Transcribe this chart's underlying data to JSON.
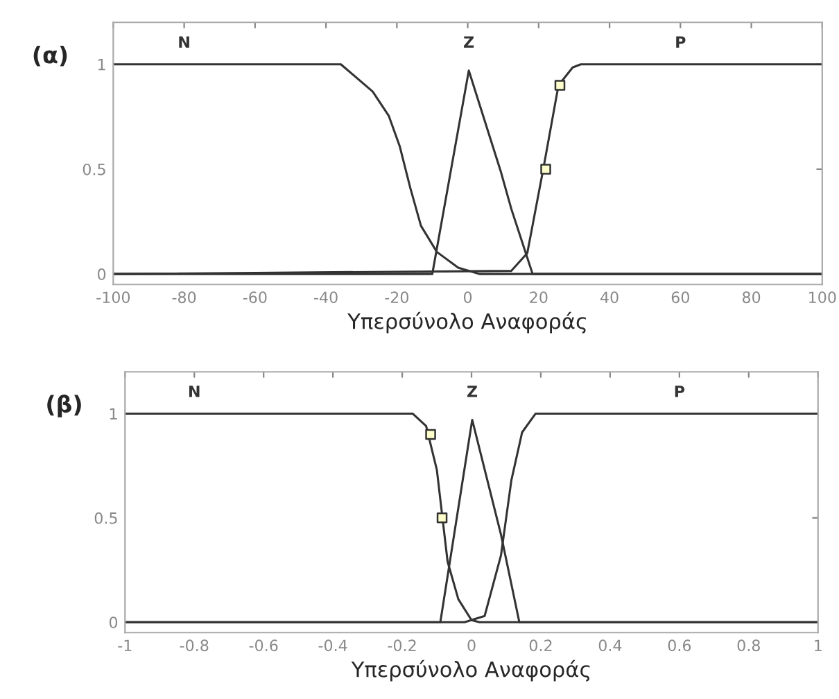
{
  "chart_data": [
    {
      "type": "line",
      "title": "(α)",
      "xlabel": "Υπερσύνολο Αναφοράς",
      "xlim": [
        -100,
        100
      ],
      "ylim": [
        -0.05,
        1.2
      ],
      "xticks": [
        -100,
        -80,
        -60,
        -40,
        -20,
        0,
        20,
        40,
        60,
        80,
        100
      ],
      "yticks": [
        0,
        0.5,
        1
      ],
      "grid": false,
      "legend": false,
      "marker": "none",
      "series": [
        {
          "name": "N",
          "color": "#333333",
          "x": [
            -100,
            -35.8,
            -26.8,
            -22.3,
            -19.2,
            -16.2,
            -13.2,
            -8.7,
            -2.7,
            3.3,
            100
          ],
          "values": [
            1,
            1,
            0.87,
            0.755,
            0.61,
            0.41,
            0.23,
            0.105,
            0.03,
            0,
            0
          ]
        },
        {
          "name": "Z",
          "color": "#333333",
          "x": [
            -100,
            -10,
            0.3,
            9.3,
            12.3,
            18.3,
            100
          ],
          "values": [
            0,
            0,
            0.97,
            0.49,
            0.31,
            0,
            0
          ]
        },
        {
          "name": "P",
          "color": "#333333",
          "x": [
            -100,
            12.3,
            16.8,
            21.3,
            25.6,
            29.6,
            31.9,
            100
          ],
          "values": [
            0,
            0.015,
            0.1,
            0.5,
            0.9,
            0.985,
            1,
            1
          ]
        },
        {
          "type": "scatter",
          "marker": "square",
          "color": "#333333",
          "x": [
            22,
            26
          ],
          "values": [
            0.5,
            0.9
          ]
        }
      ]
    },
    {
      "type": "line",
      "title": "(β)",
      "xlabel": "Υπερσύνολο Αναφοράς",
      "xlim": [
        -1,
        1
      ],
      "ylim": [
        -0.05,
        1.2
      ],
      "xticks": [
        -1,
        -0.8,
        -0.6,
        -0.4,
        -0.2,
        0,
        0.2,
        0.4,
        0.6,
        0.8,
        1
      ],
      "yticks": [
        0,
        0.5,
        1
      ],
      "grid": false,
      "legend": false,
      "marker": "none",
      "series": [
        {
          "name": "N",
          "color": "#333333",
          "x": [
            -1,
            -0.17,
            -0.131,
            -0.1,
            -0.069,
            -0.038,
            0,
            0.023,
            1
          ],
          "values": [
            1,
            1,
            0.94,
            0.73,
            0.29,
            0.11,
            0.01,
            0,
            0
          ]
        },
        {
          "name": "Z",
          "color": "#333333",
          "x": [
            -1,
            -0.09,
            0.002,
            0.085,
            0.138,
            1
          ],
          "values": [
            0,
            0,
            0.97,
            0.42,
            0,
            0
          ]
        },
        {
          "name": "P",
          "color": "#333333",
          "x": [
            -1,
            -0.02,
            0.038,
            0.085,
            0.115,
            0.146,
            0.185,
            1
          ],
          "values": [
            0,
            0,
            0.03,
            0.32,
            0.68,
            0.91,
            1,
            1
          ]
        },
        {
          "type": "scatter",
          "marker": "square",
          "color": "#333333",
          "x": [
            -0.118,
            -0.085
          ],
          "values": [
            0.9,
            0.5
          ]
        }
      ]
    }
  ]
}
